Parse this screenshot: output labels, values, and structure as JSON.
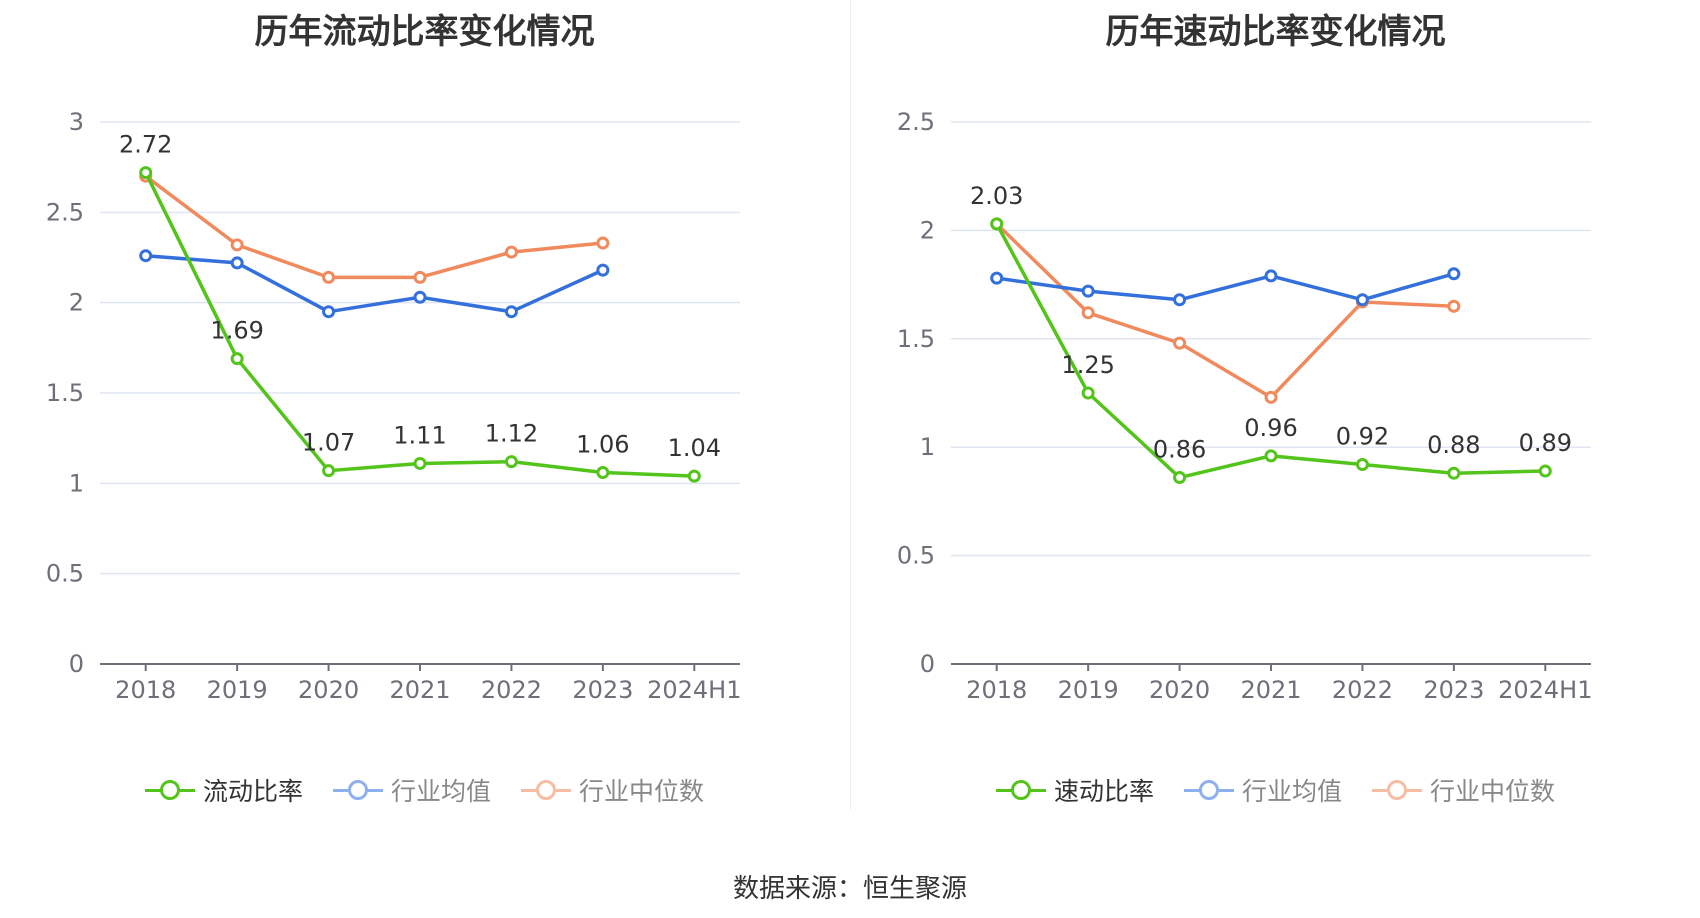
{
  "source_text": "数据来源：恒生聚源",
  "chart_data": [
    {
      "type": "line",
      "title": "历年流动比率变化情况",
      "categories": [
        "2018",
        "2019",
        "2020",
        "2021",
        "2022",
        "2023",
        "2024H1"
      ],
      "ylim": [
        0,
        3
      ],
      "yticks": [
        "0",
        "0.5",
        "1",
        "1.5",
        "2",
        "2.5",
        "3"
      ],
      "grid": true,
      "legend_position": "bottom",
      "series": [
        {
          "name": "流动比率",
          "color": "#52c41a",
          "values": [
            2.72,
            1.69,
            1.07,
            1.11,
            1.12,
            1.06,
            1.04
          ],
          "labels": [
            "2.72",
            "1.69",
            "1.07",
            "1.11",
            "1.12",
            "1.06",
            "1.04"
          ]
        },
        {
          "name": "行业均值",
          "color": "#3370dc",
          "values": [
            2.26,
            2.22,
            1.95,
            2.03,
            1.95,
            2.18,
            null
          ]
        },
        {
          "name": "行业中位数",
          "color": "#f08a5d",
          "values": [
            2.7,
            2.32,
            2.14,
            2.14,
            2.28,
            2.33,
            null
          ]
        }
      ]
    },
    {
      "type": "line",
      "title": "历年速动比率变化情况",
      "categories": [
        "2018",
        "2019",
        "2020",
        "2021",
        "2022",
        "2023",
        "2024H1"
      ],
      "ylim": [
        0,
        2.5
      ],
      "yticks": [
        "0",
        "0.5",
        "1",
        "1.5",
        "2",
        "2.5"
      ],
      "grid": true,
      "legend_position": "bottom",
      "series": [
        {
          "name": "速动比率",
          "color": "#52c41a",
          "values": [
            2.03,
            1.25,
            0.86,
            0.96,
            0.92,
            0.88,
            0.89
          ],
          "labels": [
            "2.03",
            "1.25",
            "0.86",
            "0.96",
            "0.92",
            "0.88",
            "0.89"
          ]
        },
        {
          "name": "行业均值",
          "color": "#3370dc",
          "values": [
            1.78,
            1.72,
            1.68,
            1.79,
            1.68,
            1.8,
            null
          ]
        },
        {
          "name": "行业中位数",
          "color": "#f08a5d",
          "values": [
            2.03,
            1.62,
            1.48,
            1.23,
            1.67,
            1.65,
            null
          ]
        }
      ]
    }
  ]
}
